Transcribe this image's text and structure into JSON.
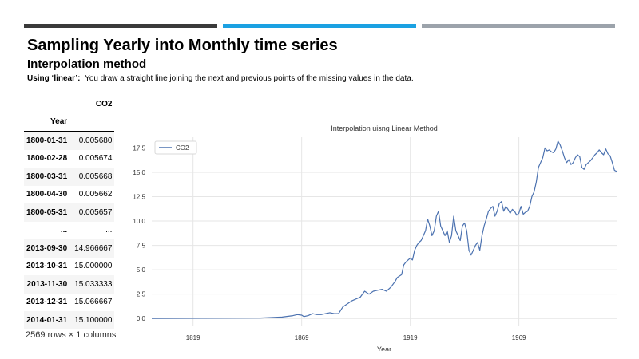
{
  "header_bars": [
    "dark",
    "blue",
    "gray"
  ],
  "slide": {
    "title": "Sampling Yearly into Monthly time series",
    "subtitle": "Interpolation  method",
    "desc_label": "Using ‘linear’:",
    "desc_text": "You draw a straight line joining the next and previous points of the missing values in the data."
  },
  "dataframe": {
    "column": "CO2",
    "index_name": "Year",
    "rows": [
      {
        "idx": "1800-01-31",
        "val": "0.005680"
      },
      {
        "idx": "1800-02-28",
        "val": "0.005674"
      },
      {
        "idx": "1800-03-31",
        "val": "0.005668"
      },
      {
        "idx": "1800-04-30",
        "val": "0.005662"
      },
      {
        "idx": "1800-05-31",
        "val": "0.005657"
      },
      {
        "idx": "...",
        "val": "..."
      },
      {
        "idx": "2013-09-30",
        "val": "14.966667"
      },
      {
        "idx": "2013-10-31",
        "val": "15.000000"
      },
      {
        "idx": "2013-11-30",
        "val": "15.033333"
      },
      {
        "idx": "2013-12-31",
        "val": "15.066667"
      },
      {
        "idx": "2014-01-31",
        "val": "15.100000"
      }
    ],
    "shape_note": "2569 rows × 1 columns"
  },
  "colors": {
    "line": "#4c72b0",
    "grid": "#e6e6e6",
    "bar_dark": "#3a3a3a",
    "bar_blue": "#1ba1e2",
    "bar_gray": "#9ca3ab"
  },
  "chart_data": {
    "type": "line",
    "title": "Interpolation uisng Linear Method",
    "xlabel": "Year",
    "ylabel": "",
    "xlim": [
      1800,
      2014
    ],
    "ylim": [
      -0.8,
      18.6
    ],
    "xticks": [
      1819,
      1869,
      1919,
      1969
    ],
    "yticks": [
      0.0,
      2.5,
      5.0,
      7.5,
      10.0,
      12.5,
      15.0,
      17.5
    ],
    "ytick_labels": [
      "0.0",
      "2.5",
      "5.0",
      "7.5",
      "10.0",
      "12.5",
      "15.0",
      "17.5"
    ],
    "legend": "top-left",
    "grid": true,
    "series": [
      {
        "name": "CO2",
        "x": [
          1800,
          1850,
          1860,
          1865,
          1867,
          1869,
          1870,
          1872,
          1874,
          1876,
          1878,
          1880,
          1882,
          1884,
          1886,
          1888,
          1890,
          1892,
          1894,
          1896,
          1898,
          1900,
          1902,
          1904,
          1906,
          1908,
          1910,
          1912,
          1913,
          1915,
          1916,
          1917,
          1918,
          1919,
          1920,
          1921,
          1922,
          1923,
          1924,
          1925,
          1926,
          1927,
          1928,
          1929,
          1930,
          1931,
          1932,
          1933,
          1934,
          1935,
          1936,
          1937,
          1938,
          1939,
          1940,
          1941,
          1942,
          1943,
          1944,
          1945,
          1946,
          1947,
          1948,
          1949,
          1950,
          1951,
          1952,
          1953,
          1954,
          1955,
          1956,
          1957,
          1958,
          1959,
          1960,
          1961,
          1962,
          1963,
          1964,
          1965,
          1966,
          1967,
          1968,
          1969,
          1970,
          1971,
          1972,
          1973,
          1974,
          1975,
          1976,
          1977,
          1978,
          1979,
          1980,
          1981,
          1982,
          1983,
          1984,
          1985,
          1986,
          1987,
          1988,
          1989,
          1990,
          1991,
          1992,
          1993,
          1994,
          1995,
          1996,
          1997,
          1998,
          1999,
          2000,
          2001,
          2002,
          2003,
          2004,
          2005,
          2006,
          2007,
          2008,
          2009,
          2010,
          2011,
          2012,
          2013,
          2014
        ],
        "values": [
          0.01,
          0.05,
          0.15,
          0.3,
          0.4,
          0.35,
          0.2,
          0.3,
          0.5,
          0.4,
          0.4,
          0.5,
          0.6,
          0.5,
          0.5,
          1.2,
          1.5,
          1.8,
          2.0,
          2.2,
          2.8,
          2.5,
          2.8,
          2.9,
          3.0,
          2.8,
          3.2,
          3.8,
          4.2,
          4.5,
          5.5,
          5.8,
          6.0,
          6.2,
          6.0,
          7.0,
          7.5,
          7.8,
          8.0,
          8.5,
          9.0,
          10.2,
          9.5,
          8.5,
          9.0,
          10.5,
          11.0,
          9.5,
          9.0,
          8.5,
          9.0,
          7.8,
          8.5,
          10.5,
          9.0,
          8.5,
          8.0,
          9.5,
          9.8,
          9.0,
          7.0,
          6.5,
          7.0,
          7.5,
          7.8,
          7.0,
          8.5,
          9.5,
          10.2,
          11.0,
          11.3,
          11.5,
          10.5,
          11.0,
          11.8,
          12.0,
          11.0,
          11.5,
          11.2,
          10.8,
          11.2,
          11.0,
          10.6,
          10.8,
          11.5,
          10.7,
          10.9,
          11.0,
          11.5,
          12.5,
          13.0,
          14.0,
          15.5,
          16.0,
          16.5,
          17.5,
          17.2,
          17.3,
          17.1,
          17.0,
          17.4,
          18.2,
          17.8,
          17.2,
          16.5,
          16.0,
          16.3,
          15.8,
          16.0,
          16.5,
          16.8,
          16.6,
          15.5,
          15.3,
          15.8,
          16.0,
          16.2,
          16.5,
          16.8,
          17.0,
          17.3,
          17.0,
          16.8,
          17.4,
          16.9,
          16.7,
          16.0,
          15.2,
          15.1
        ]
      }
    ]
  }
}
